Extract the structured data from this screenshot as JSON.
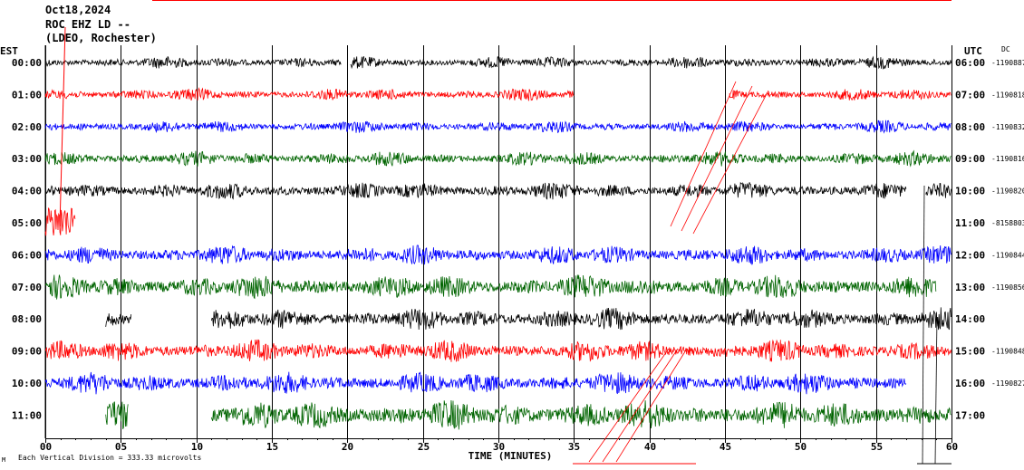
{
  "header": {
    "date": "Oct18,2024",
    "station": "ROC EHZ LD --",
    "network": "(LDEO, Rochester)"
  },
  "chart_data": {
    "type": "line",
    "title": "",
    "xlabel": "TIME (MINUTES)",
    "xlim": [
      0,
      60
    ],
    "x_ticks": [
      "00",
      "05",
      "10",
      "15",
      "20",
      "25",
      "30",
      "35",
      "40",
      "45",
      "50",
      "55",
      "60"
    ],
    "left_axis_label": "EST",
    "right_axis_label": "UTC",
    "dc_label": "DC",
    "footnote": "Each Vertical Division = 333.33 microvolts",
    "footnote_mark": "M",
    "grid": true,
    "trace_colors": [
      "#000000",
      "#ff0000",
      "#0000ff",
      "#006400"
    ],
    "rows": [
      {
        "est": "00:00",
        "utc": "06:00",
        "dc": "-1190887",
        "color": "#000000",
        "amp": 5,
        "segments": [
          [
            0,
            19.6
          ],
          [
            20.2,
            60
          ]
        ]
      },
      {
        "est": "01:00",
        "utc": "07:00",
        "dc": "-1190818",
        "color": "#ff0000",
        "amp": 5,
        "segments": [
          [
            0,
            35
          ],
          [
            45.3,
            60
          ]
        ]
      },
      {
        "est": "02:00",
        "utc": "08:00",
        "dc": "-1190832",
        "color": "#0000ff",
        "amp": 5,
        "segments": [
          [
            0,
            60
          ]
        ]
      },
      {
        "est": "03:00",
        "utc": "09:00",
        "dc": "-1190816",
        "color": "#006400",
        "amp": 6,
        "segments": [
          [
            0,
            60
          ]
        ]
      },
      {
        "est": "04:00",
        "utc": "10:00",
        "dc": "-1190820",
        "color": "#000000",
        "amp": 7,
        "segments": [
          [
            0,
            57
          ],
          [
            58.3,
            60
          ]
        ]
      },
      {
        "est": "05:00",
        "utc": "11:00",
        "dc": "-8158803",
        "color": "#ff0000",
        "amp": 14,
        "segments": [
          [
            0,
            2
          ]
        ]
      },
      {
        "est": "06:00",
        "utc": "12:00",
        "dc": "-1190844",
        "color": "#0000ff",
        "amp": 8,
        "segments": [
          [
            0,
            60
          ]
        ]
      },
      {
        "est": "07:00",
        "utc": "13:00",
        "dc": "-1190856",
        "color": "#006400",
        "amp": 10,
        "segments": [
          [
            0,
            59
          ]
        ]
      },
      {
        "est": "08:00",
        "utc": "14:00",
        "dc": "",
        "color": "#000000",
        "amp": 9,
        "segments": [
          [
            4,
            5.7
          ],
          [
            11,
            60
          ]
        ]
      },
      {
        "est": "09:00",
        "utc": "15:00",
        "dc": "-1190848",
        "color": "#ff0000",
        "amp": 9,
        "segments": [
          [
            0,
            60
          ]
        ]
      },
      {
        "est": "10:00",
        "utc": "16:00",
        "dc": "-1190827",
        "color": "#0000ff",
        "amp": 9,
        "segments": [
          [
            0,
            57
          ]
        ]
      },
      {
        "est": "11:00",
        "utc": "17:00",
        "dc": "",
        "color": "#006400",
        "amp": 12,
        "segments": [
          [
            4,
            5.5
          ],
          [
            11,
            60
          ]
        ]
      }
    ]
  }
}
